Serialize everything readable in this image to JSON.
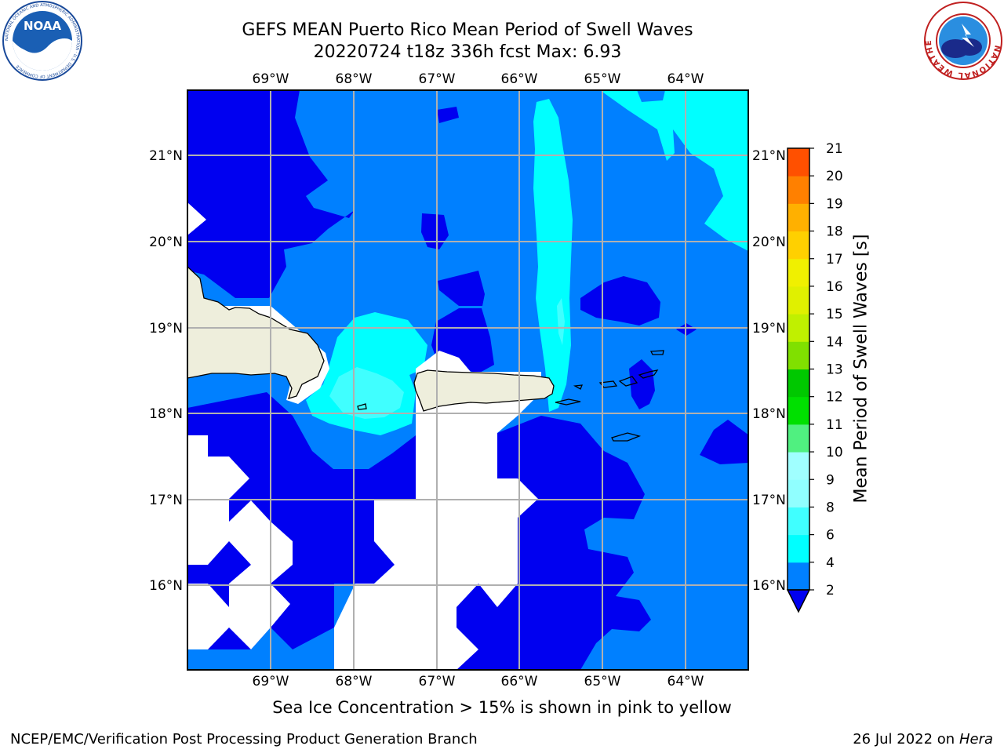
{
  "header": {
    "title_line1": "GEFS MEAN Puerto Rico Mean Period of Swell Waves",
    "title_line2": "20220724 t18z 336h fcst   Max: 6.93"
  },
  "logos": {
    "left": "NOAA",
    "left_ring_text": "NATIONAL OCEANIC AND ATMOSPHERIC ADMINISTRATION · U.S. DEPARTMENT OF COMMERCE",
    "right_ring_text": "NATIONAL WEATHER SERVICE"
  },
  "map": {
    "lon_ticks": [
      "69°W",
      "68°W",
      "67°W",
      "66°W",
      "65°W",
      "64°W"
    ],
    "lat_ticks": [
      "21°N",
      "20°N",
      "19°N",
      "18°N",
      "17°N",
      "16°N"
    ],
    "colors": {
      "ocean_2_4": "#0080ff",
      "ocean_lt2": "#0000f0",
      "ocean_4_6": "#00ffff",
      "ocean_6_7": "#40ffff",
      "land": "#eeeedc",
      "no_data": "#ffffff",
      "grid": "#b0b0b0"
    }
  },
  "colorbar": {
    "title": "Mean Period of Swell Waves [s]",
    "levels": [
      "2",
      "4",
      "6",
      "8",
      "9",
      "10",
      "11",
      "12",
      "13",
      "14",
      "15",
      "16",
      "17",
      "18",
      "19",
      "20",
      "21"
    ],
    "colors": [
      "#0080ff",
      "#00ffff",
      "#40ffff",
      "#90ffff",
      "#a0ffff",
      "#50f080",
      "#00e000",
      "#00c800",
      "#80e000",
      "#c0f000",
      "#e0f000",
      "#f0f000",
      "#ffd000",
      "#ffb000",
      "#ff8000",
      "#ff5000",
      "#ff2000",
      "#ff0000"
    ],
    "underflow_color": "#0000f0"
  },
  "caption": "Sea Ice Concentration > 15% is shown in pink to yellow",
  "footer": {
    "left": "NCEP/EMC/Verification Post Processing Product Generation Branch",
    "right_date": "26 Jul 2022 on ",
    "right_machine": "Hera"
  }
}
